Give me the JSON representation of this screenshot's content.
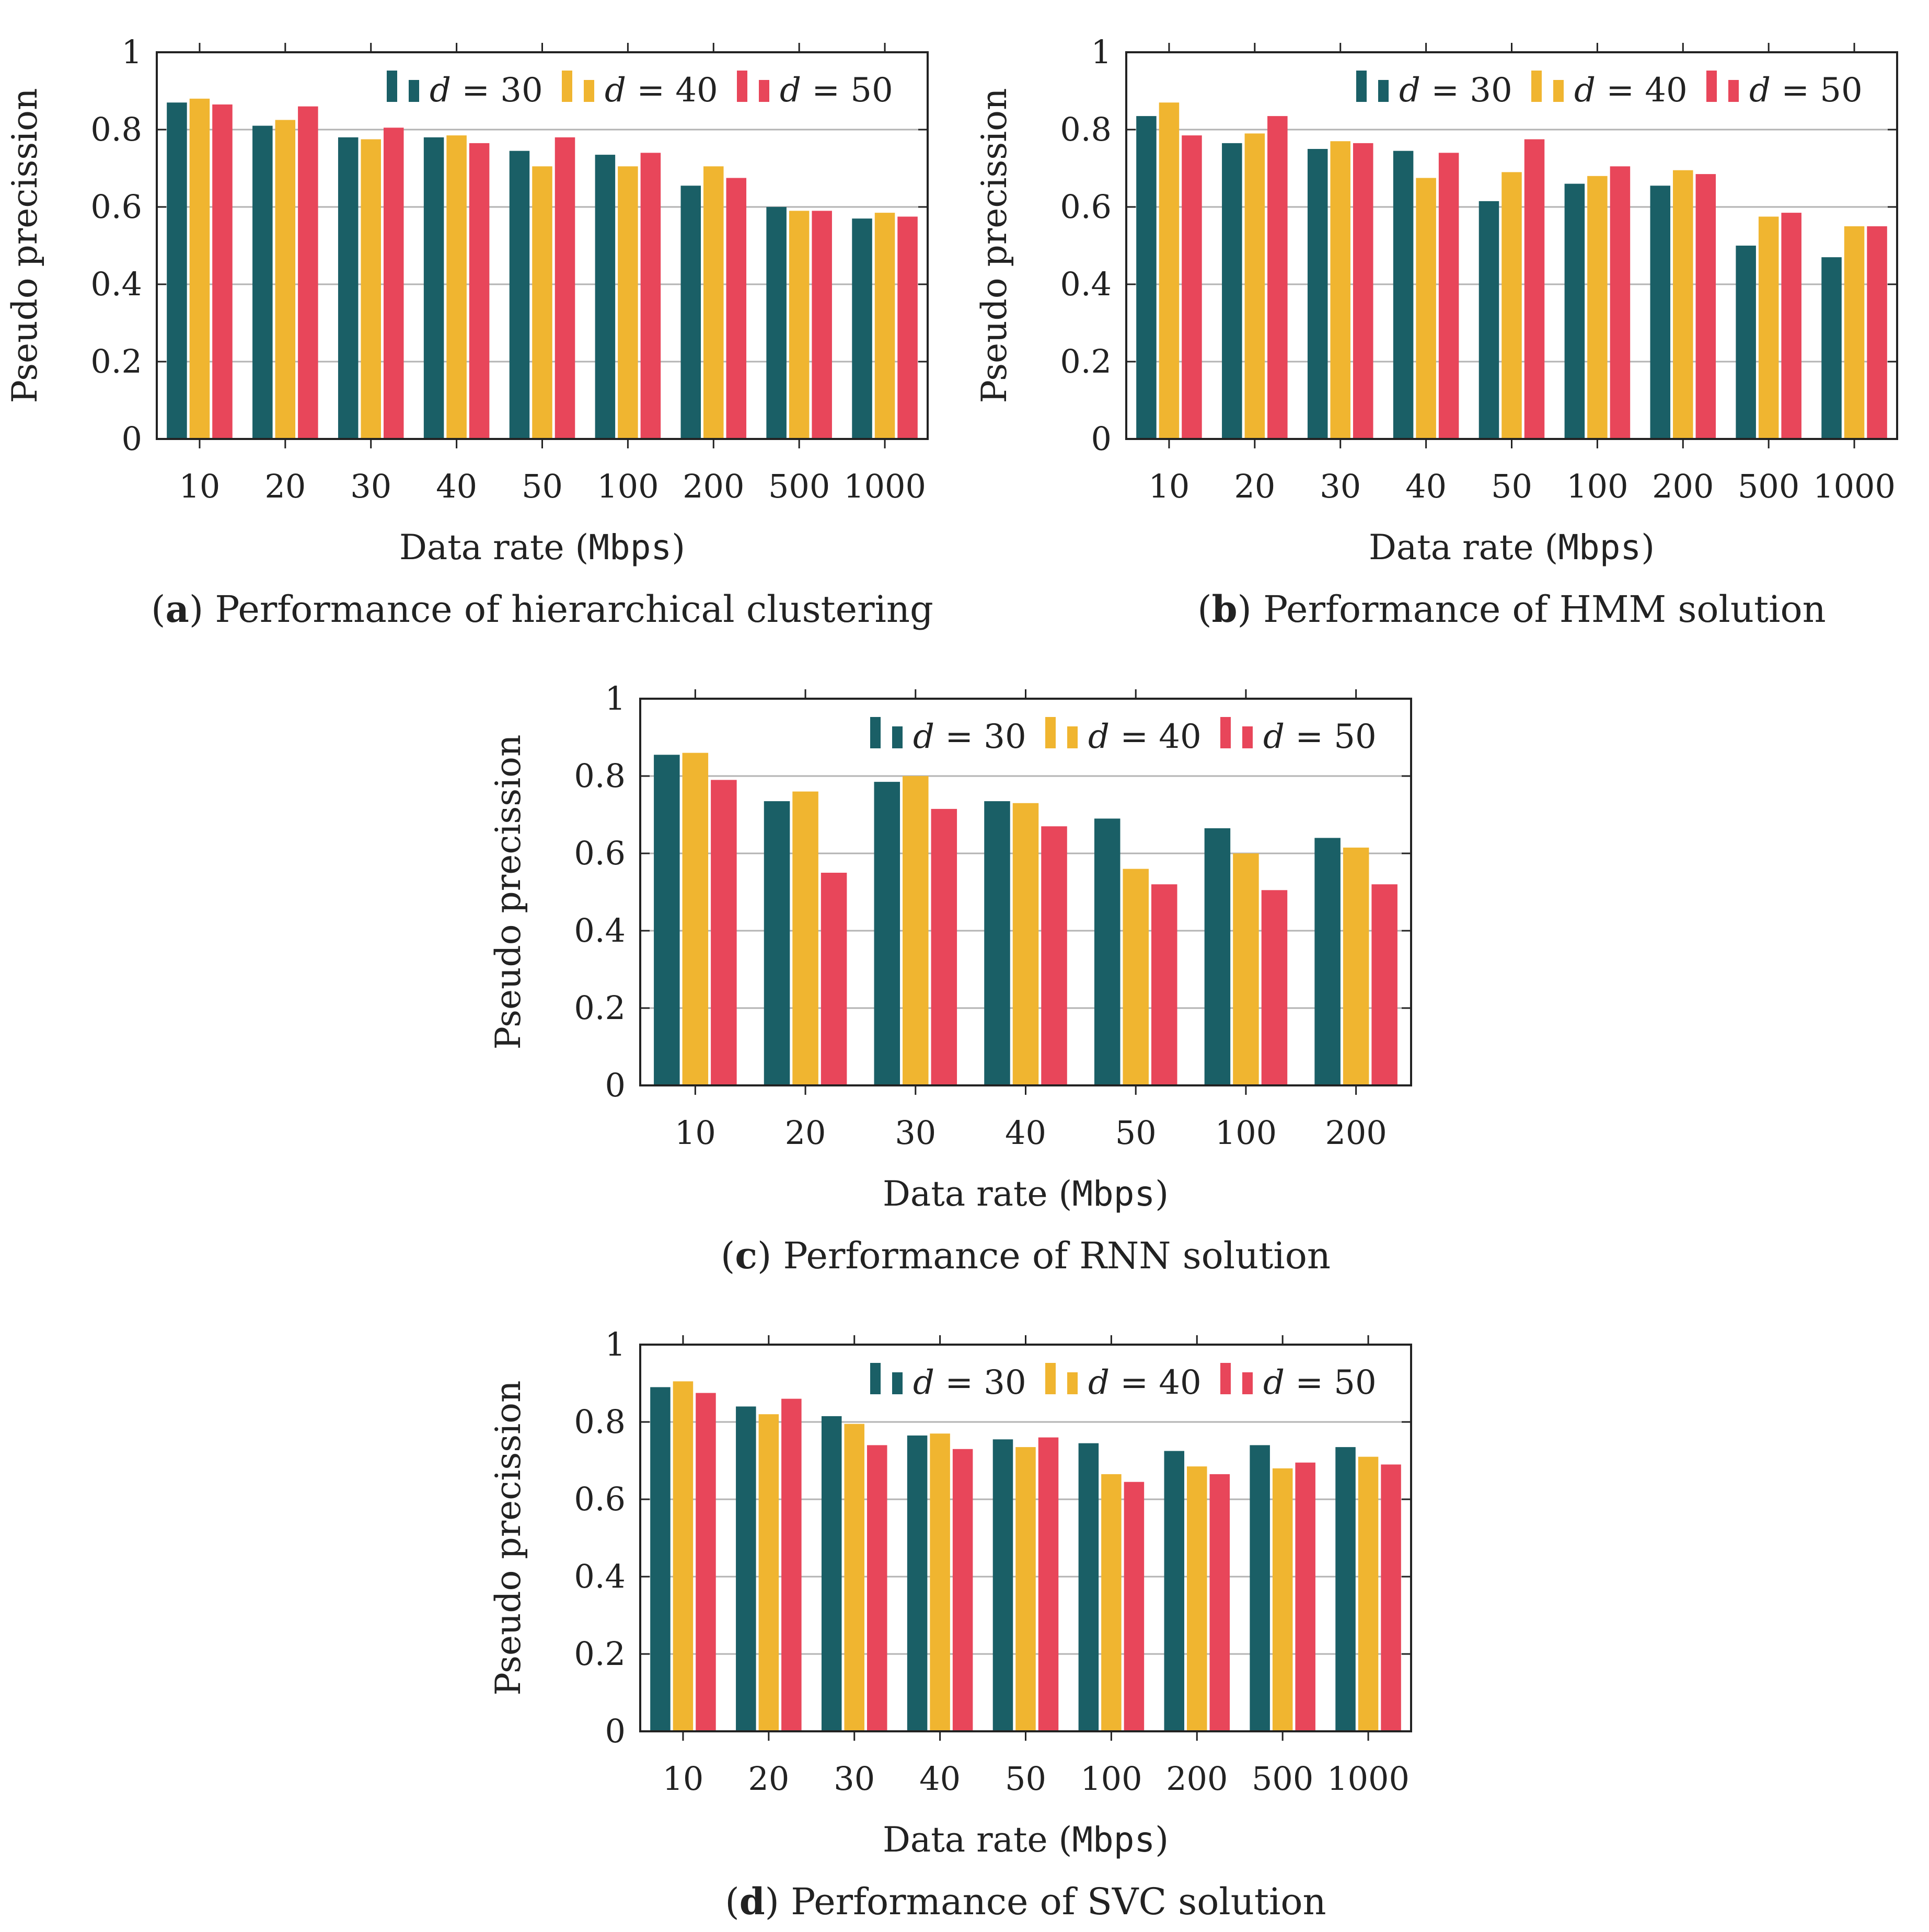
{
  "colors": {
    "d30": "#1a5f66",
    "d40": "#f0b530",
    "d50": "#e8465a",
    "grid": "#b3b3b3",
    "axis": "#222222"
  },
  "chart_data": [
    {
      "type": "bar",
      "panel": "a",
      "title": "Performance of hierarchical clustering",
      "xlabel_prefix": "Data rate (",
      "xlabel_unit": "Mbps",
      "xlabel_suffix": ")",
      "ylabel": "Pseudo precission",
      "ylim": [
        0,
        1
      ],
      "yticks": [
        "0",
        "0.2",
        "0.4",
        "0.6",
        "0.8",
        "1"
      ],
      "legend_position": "top-right",
      "categories": [
        "10",
        "20",
        "30",
        "40",
        "50",
        "100",
        "200",
        "500",
        "1000"
      ],
      "series": [
        {
          "name": "d = 30",
          "var": "d",
          "eq": "=",
          "num": "30",
          "values": [
            0.87,
            0.81,
            0.78,
            0.78,
            0.745,
            0.735,
            0.655,
            0.6,
            0.57
          ]
        },
        {
          "name": "d = 40",
          "var": "d",
          "eq": "=",
          "num": "40",
          "values": [
            0.88,
            0.825,
            0.775,
            0.785,
            0.705,
            0.705,
            0.705,
            0.59,
            0.585
          ]
        },
        {
          "name": "d = 50",
          "var": "d",
          "eq": "=",
          "num": "50",
          "values": [
            0.865,
            0.86,
            0.805,
            0.765,
            0.78,
            0.74,
            0.675,
            0.59,
            0.575
          ]
        }
      ]
    },
    {
      "type": "bar",
      "panel": "b",
      "title": "Performance of HMM solution",
      "xlabel_prefix": "Data rate (",
      "xlabel_unit": "Mbps",
      "xlabel_suffix": ")",
      "ylabel": "Pseudo precission",
      "ylim": [
        0,
        1
      ],
      "yticks": [
        "0",
        "0.2",
        "0.4",
        "0.6",
        "0.8",
        "1"
      ],
      "legend_position": "top-right",
      "categories": [
        "10",
        "20",
        "30",
        "40",
        "50",
        "100",
        "200",
        "500",
        "1000"
      ],
      "series": [
        {
          "name": "d = 30",
          "var": "d",
          "eq": "=",
          "num": "30",
          "values": [
            0.835,
            0.765,
            0.75,
            0.745,
            0.615,
            0.66,
            0.655,
            0.5,
            0.47
          ]
        },
        {
          "name": "d = 40",
          "var": "d",
          "eq": "=",
          "num": "40",
          "values": [
            0.87,
            0.79,
            0.77,
            0.675,
            0.69,
            0.68,
            0.695,
            0.575,
            0.55
          ]
        },
        {
          "name": "d = 50",
          "var": "d",
          "eq": "=",
          "num": "50",
          "values": [
            0.785,
            0.835,
            0.765,
            0.74,
            0.775,
            0.705,
            0.685,
            0.585,
            0.55
          ]
        }
      ]
    },
    {
      "type": "bar",
      "panel": "c",
      "title": "Performance of RNN solution",
      "xlabel_prefix": "Data rate (",
      "xlabel_unit": "Mbps",
      "xlabel_suffix": ")",
      "ylabel": "Pseudo precission",
      "ylim": [
        0,
        1
      ],
      "yticks": [
        "0",
        "0.2",
        "0.4",
        "0.6",
        "0.8",
        "1"
      ],
      "legend_position": "top-right",
      "categories": [
        "10",
        "20",
        "30",
        "40",
        "50",
        "100",
        "200"
      ],
      "series": [
        {
          "name": "d = 30",
          "var": "d",
          "eq": "=",
          "num": "30",
          "values": [
            0.855,
            0.735,
            0.785,
            0.735,
            0.69,
            0.665,
            0.64
          ]
        },
        {
          "name": "d = 40",
          "var": "d",
          "eq": "=",
          "num": "40",
          "values": [
            0.86,
            0.76,
            0.8,
            0.73,
            0.56,
            0.6,
            0.615
          ]
        },
        {
          "name": "d = 50",
          "var": "d",
          "eq": "=",
          "num": "50",
          "values": [
            0.79,
            0.55,
            0.715,
            0.67,
            0.52,
            0.505,
            0.52
          ]
        }
      ]
    },
    {
      "type": "bar",
      "panel": "d",
      "title": "Performance of SVC solution",
      "xlabel_prefix": "Data rate (",
      "xlabel_unit": "Mbps",
      "xlabel_suffix": ")",
      "ylabel": "Pseudo precission",
      "ylim": [
        0,
        1
      ],
      "yticks": [
        "0",
        "0.2",
        "0.4",
        "0.6",
        "0.8",
        "1"
      ],
      "legend_position": "top-right",
      "categories": [
        "10",
        "20",
        "30",
        "40",
        "50",
        "100",
        "200",
        "500",
        "1000"
      ],
      "series": [
        {
          "name": "d = 30",
          "var": "d",
          "eq": "=",
          "num": "30",
          "values": [
            0.89,
            0.84,
            0.815,
            0.765,
            0.755,
            0.745,
            0.725,
            0.74,
            0.735
          ]
        },
        {
          "name": "d = 40",
          "var": "d",
          "eq": "=",
          "num": "40",
          "values": [
            0.905,
            0.82,
            0.795,
            0.77,
            0.735,
            0.665,
            0.685,
            0.68,
            0.71
          ]
        },
        {
          "name": "d = 50",
          "var": "d",
          "eq": "=",
          "num": "50",
          "values": [
            0.875,
            0.86,
            0.74,
            0.73,
            0.76,
            0.645,
            0.665,
            0.695,
            0.69
          ]
        }
      ]
    }
  ]
}
